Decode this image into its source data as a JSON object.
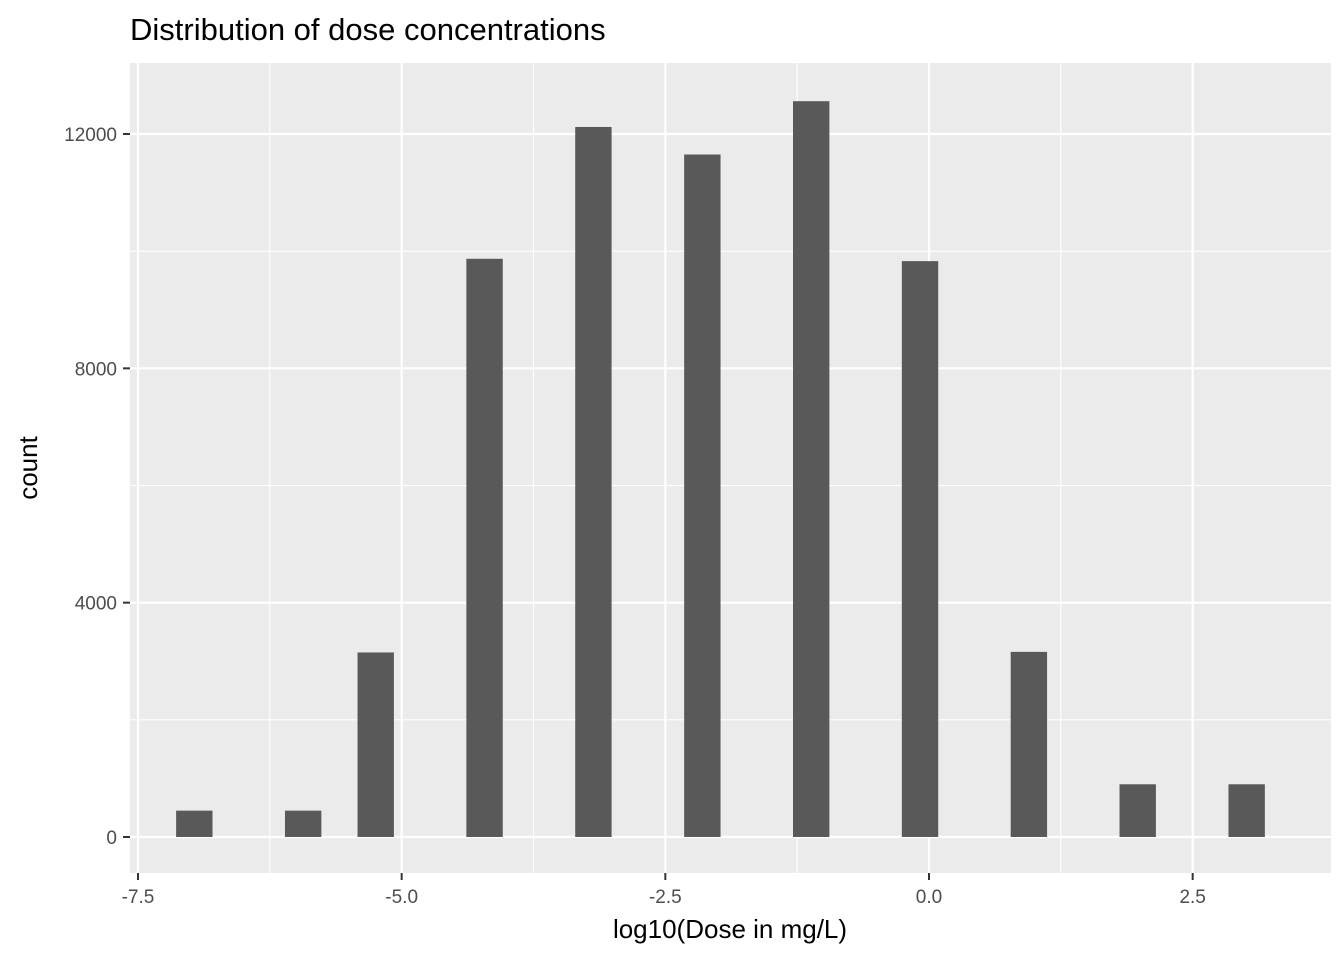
{
  "chart_data": {
    "type": "bar",
    "title": "Distribution of dose concentrations",
    "xlabel": "log10(Dose in mg/L)",
    "ylabel": "count",
    "xlim": [
      -7.5,
      3.6
    ],
    "ylim": [
      -600,
      13100
    ],
    "x_ticks": [
      {
        "value": -7.5,
        "label": "-7.5"
      },
      {
        "value": -5.0,
        "label": "-5.0"
      },
      {
        "value": -2.5,
        "label": "-2.5"
      },
      {
        "value": 0.0,
        "label": "0.0"
      },
      {
        "value": 2.5,
        "label": "2.5"
      }
    ],
    "x_minor_ticks": [
      -6.25,
      -3.75,
      -1.25,
      1.25
    ],
    "y_ticks": [
      {
        "value": 0,
        "label": "0"
      },
      {
        "value": 4000,
        "label": "4000"
      },
      {
        "value": 8000,
        "label": "8000"
      },
      {
        "value": 12000,
        "label": "12000"
      }
    ],
    "y_minor_ticks": [
      2000,
      6000,
      10000
    ],
    "bin_width": 0.345,
    "bars": [
      {
        "x": -6.966,
        "count": 450
      },
      {
        "x": -5.934,
        "count": 450
      },
      {
        "x": -5.246,
        "count": 3150
      },
      {
        "x": -4.214,
        "count": 9870
      },
      {
        "x": -3.182,
        "count": 12120
      },
      {
        "x": -2.149,
        "count": 11650
      },
      {
        "x": -1.117,
        "count": 12560
      },
      {
        "x": -0.085,
        "count": 9830
      },
      {
        "x": 0.947,
        "count": 3160
      },
      {
        "x": 1.979,
        "count": 900
      },
      {
        "x": 3.012,
        "count": 900
      }
    ],
    "grid": true,
    "bar_color": "#595959",
    "panel_color": "#ebebeb",
    "grid_color": "#ffffff"
  }
}
